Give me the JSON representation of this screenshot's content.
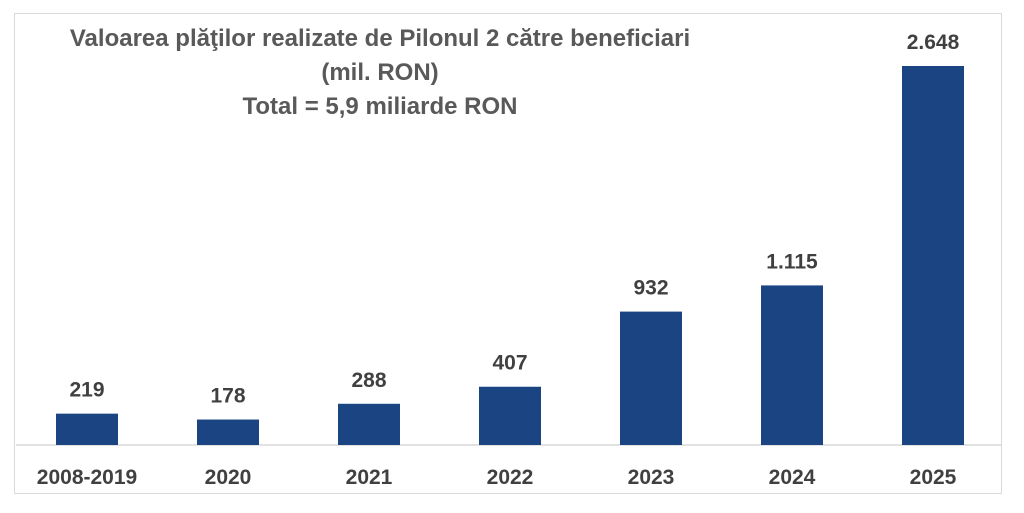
{
  "chart_data": {
    "type": "bar",
    "title": "Valoarea plăţilor realizate de Pilonul 2 către beneficiari",
    "subtitle": "(mil. RON)",
    "annotation": "Total = 5,9 miliarde RON",
    "categories": [
      "2008-2019",
      "2020",
      "2021",
      "2022",
      "2023",
      "2024",
      "2025"
    ],
    "values": [
      219,
      178,
      288,
      407,
      932,
      1115,
      2648
    ],
    "data_labels": [
      "219",
      "178",
      "288",
      "407",
      "932",
      "1.115",
      "2.648"
    ],
    "xlabel": "",
    "ylabel": "",
    "ylim": [
      0,
      2648
    ],
    "grid": false,
    "legend": "none",
    "bar_color": "#1b4482",
    "axis_color": "#d9d9d9",
    "label_color": "#404040",
    "title_color": "#595959"
  }
}
